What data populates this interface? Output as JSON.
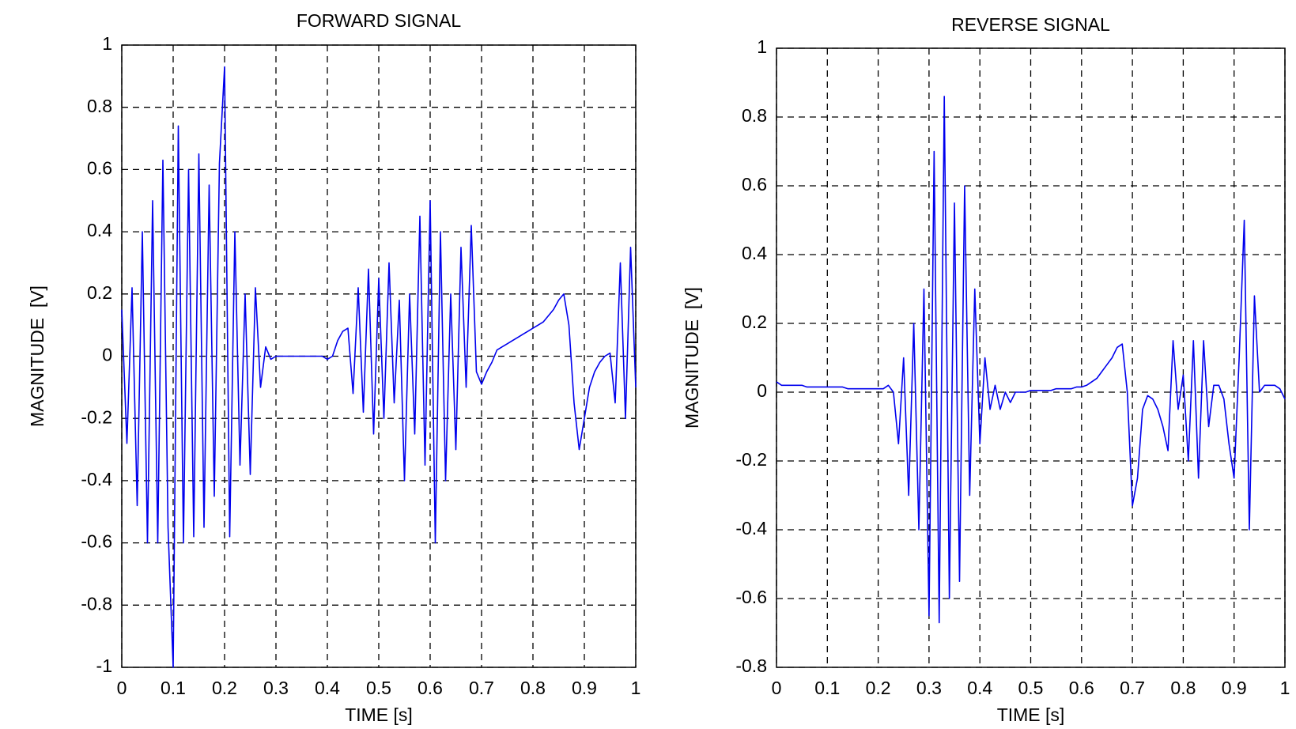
{
  "chart_data": [
    {
      "type": "line",
      "title": "FORWARD SIGNAL",
      "x_label": "TIME [s]",
      "y_label": "MAGNITUDE  [V]",
      "color": "#0000ee",
      "grid": true,
      "xlim": [
        0,
        1
      ],
      "ylim": [
        -1,
        1
      ],
      "xticks": [
        0,
        0.1,
        0.2,
        0.3,
        0.4,
        0.5,
        0.6,
        0.7,
        0.8,
        0.9,
        1
      ],
      "yticks": [
        -1,
        -0.8,
        -0.6,
        -0.4,
        -0.2,
        0,
        0.2,
        0.4,
        0.6,
        0.8,
        1
      ],
      "x": [
        0,
        0.01,
        0.02,
        0.03,
        0.04,
        0.05,
        0.06,
        0.07,
        0.08,
        0.09,
        0.1,
        0.11,
        0.12,
        0.13,
        0.14,
        0.15,
        0.16,
        0.17,
        0.18,
        0.19,
        0.2,
        0.21,
        0.22,
        0.23,
        0.24,
        0.25,
        0.26,
        0.27,
        0.28,
        0.29,
        0.3,
        0.31,
        0.32,
        0.33,
        0.34,
        0.35,
        0.36,
        0.37,
        0.38,
        0.39,
        0.4,
        0.41,
        0.42,
        0.43,
        0.44,
        0.45,
        0.46,
        0.47,
        0.48,
        0.49,
        0.5,
        0.51,
        0.52,
        0.53,
        0.54,
        0.55,
        0.56,
        0.57,
        0.58,
        0.59,
        0.6,
        0.61,
        0.62,
        0.63,
        0.64,
        0.65,
        0.66,
        0.67,
        0.68,
        0.69,
        0.7,
        0.71,
        0.72,
        0.73,
        0.74,
        0.75,
        0.76,
        0.77,
        0.78,
        0.79,
        0.8,
        0.81,
        0.82,
        0.83,
        0.84,
        0.85,
        0.86,
        0.87,
        0.88,
        0.89,
        0.9,
        0.91,
        0.92,
        0.93,
        0.94,
        0.95,
        0.96,
        0.97,
        0.98,
        0.99,
        1
      ],
      "values": [
        0.15,
        -0.28,
        0.22,
        -0.48,
        0.4,
        -0.6,
        0.5,
        -0.6,
        0.63,
        -0.55,
        -1,
        0.74,
        -0.6,
        0.6,
        -0.58,
        0.65,
        -0.55,
        0.55,
        -0.45,
        0.62,
        0.93,
        -0.58,
        0.4,
        -0.35,
        0.2,
        -0.38,
        0.22,
        -0.1,
        0.03,
        -0.01,
        0,
        0,
        0,
        0,
        0,
        0,
        0,
        0,
        0,
        0,
        -0.01,
        0,
        0.05,
        0.08,
        0.09,
        -0.12,
        0.22,
        -0.18,
        0.28,
        -0.25,
        0.25,
        -0.2,
        0.3,
        -0.15,
        0.18,
        -0.4,
        0.2,
        -0.25,
        0.45,
        -0.35,
        0.5,
        -0.6,
        0.4,
        -0.4,
        0.2,
        -0.3,
        0.35,
        -0.1,
        0.42,
        -0.05,
        -0.09,
        -0.05,
        -0.02,
        0.02,
        0.03,
        0.04,
        0.05,
        0.06,
        0.07,
        0.08,
        0.09,
        0.1,
        0.11,
        0.13,
        0.15,
        0.18,
        0.2,
        0.1,
        -0.15,
        -0.3,
        -0.2,
        -0.1,
        -0.05,
        -0.02,
        0,
        0.01,
        -0.15,
        0.3,
        -0.2,
        0.35,
        -0.1
      ]
    },
    {
      "type": "line",
      "title": "REVERSE SIGNAL",
      "x_label": "TIME [s]",
      "y_label": "MAGNITUDE  [V]",
      "color": "#0000ee",
      "grid": true,
      "xlim": [
        0,
        1
      ],
      "ylim": [
        -0.8,
        1
      ],
      "xticks": [
        0,
        0.1,
        0.2,
        0.3,
        0.4,
        0.5,
        0.6,
        0.7,
        0.8,
        0.9,
        1
      ],
      "yticks": [
        -0.8,
        -0.6,
        -0.4,
        -0.2,
        0,
        0.2,
        0.4,
        0.6,
        0.8,
        1
      ],
      "x": [
        0,
        0.01,
        0.02,
        0.03,
        0.04,
        0.05,
        0.06,
        0.07,
        0.08,
        0.09,
        0.1,
        0.11,
        0.12,
        0.13,
        0.14,
        0.15,
        0.16,
        0.17,
        0.18,
        0.19,
        0.2,
        0.21,
        0.22,
        0.23,
        0.24,
        0.25,
        0.26,
        0.27,
        0.28,
        0.29,
        0.3,
        0.31,
        0.32,
        0.33,
        0.34,
        0.35,
        0.36,
        0.37,
        0.38,
        0.39,
        0.4,
        0.41,
        0.42,
        0.43,
        0.44,
        0.45,
        0.46,
        0.47,
        0.48,
        0.49,
        0.5,
        0.51,
        0.52,
        0.53,
        0.54,
        0.55,
        0.56,
        0.57,
        0.58,
        0.59,
        0.6,
        0.61,
        0.62,
        0.63,
        0.64,
        0.65,
        0.66,
        0.67,
        0.68,
        0.69,
        0.7,
        0.71,
        0.72,
        0.73,
        0.74,
        0.75,
        0.76,
        0.77,
        0.78,
        0.79,
        0.8,
        0.81,
        0.82,
        0.83,
        0.84,
        0.85,
        0.86,
        0.87,
        0.88,
        0.89,
        0.9,
        0.91,
        0.92,
        0.93,
        0.94,
        0.95,
        0.96,
        0.97,
        0.98,
        0.99,
        1
      ],
      "values": [
        0.03,
        0.02,
        0.02,
        0.02,
        0.02,
        0.02,
        0.015,
        0.015,
        0.015,
        0.015,
        0.015,
        0.015,
        0.015,
        0.015,
        0.01,
        0.01,
        0.01,
        0.01,
        0.01,
        0.01,
        0.01,
        0.01,
        0.02,
        0,
        -0.15,
        0.1,
        -0.3,
        0.2,
        -0.4,
        0.3,
        -0.65,
        0.7,
        -0.67,
        0.86,
        -0.6,
        0.55,
        -0.55,
        0.6,
        -0.3,
        0.3,
        -0.15,
        0.1,
        -0.05,
        0.02,
        -0.05,
        0,
        -0.03,
        0,
        0,
        0,
        0.005,
        0.005,
        0.005,
        0.005,
        0.005,
        0.01,
        0.01,
        0.01,
        0.01,
        0.015,
        0.015,
        0.02,
        0.03,
        0.04,
        0.06,
        0.08,
        0.1,
        0.13,
        0.14,
        0,
        -0.33,
        -0.25,
        -0.05,
        -0.01,
        -0.02,
        -0.05,
        -0.1,
        -0.17,
        0.15,
        -0.05,
        0.05,
        -0.2,
        0.15,
        -0.25,
        0.15,
        -0.1,
        0.02,
        0.02,
        -0.02,
        -0.15,
        -0.25,
        0.1,
        0.5,
        -0.4,
        0.28,
        0,
        0.02,
        0.02,
        0.02,
        0.01,
        -0.02
      ]
    }
  ]
}
